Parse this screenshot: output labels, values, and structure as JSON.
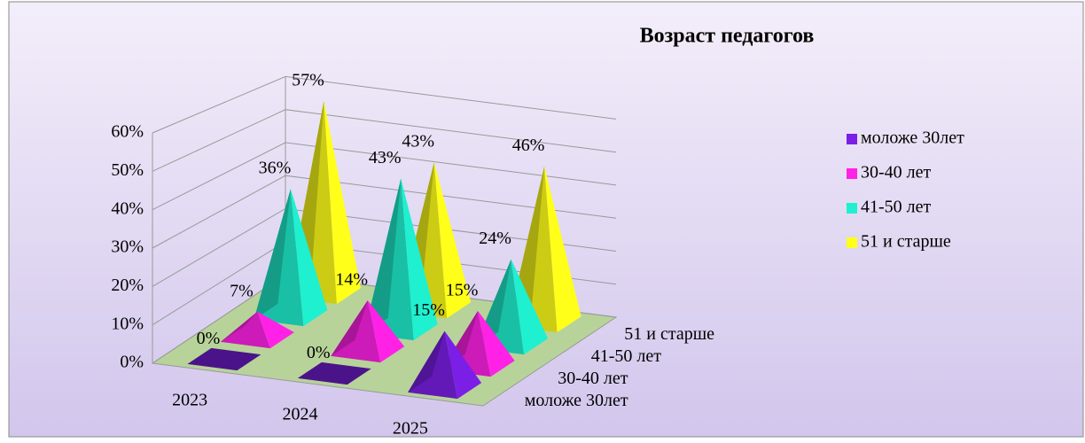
{
  "chart_data": {
    "type": "pyramid3d",
    "title": "Возраст  педагогов",
    "categories": [
      "2023",
      "2024",
      "2025"
    ],
    "series": [
      {
        "name": "моложе 30лет",
        "color": "#7b1fe6",
        "values": [
          0,
          0,
          15
        ],
        "value_labels": [
          "0%",
          "0%",
          "15%"
        ]
      },
      {
        "name": "30-40 лет",
        "color": "#ff22e6",
        "values": [
          7,
          14,
          15
        ],
        "value_labels": [
          "7%",
          "14%",
          "15%"
        ]
      },
      {
        "name": "41-50 лет",
        "color": "#1ff0d0",
        "values": [
          36,
          43,
          24
        ],
        "value_labels": [
          "36%",
          "43%",
          "24%"
        ]
      },
      {
        "name": "51 и старше",
        "color": "#ffff1a",
        "values": [
          57,
          43,
          46
        ],
        "value_labels": [
          "57%",
          "43%",
          "46%"
        ]
      }
    ],
    "ylim": [
      0,
      60
    ],
    "yticks": [
      {
        "value": 0,
        "label": "0%"
      },
      {
        "value": 10,
        "label": "10%"
      },
      {
        "value": 20,
        "label": "20%"
      },
      {
        "value": 30,
        "label": "30%"
      },
      {
        "value": 40,
        "label": "40%"
      },
      {
        "value": 50,
        "label": "50%"
      },
      {
        "value": 60,
        "label": "60%"
      }
    ],
    "grid": true,
    "legend": "right"
  }
}
